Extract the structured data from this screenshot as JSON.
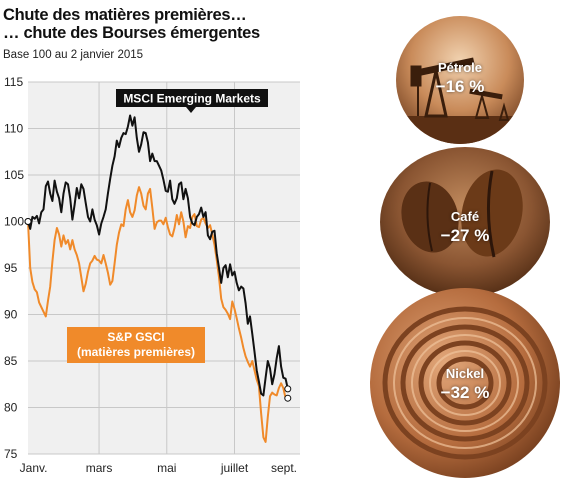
{
  "header": {
    "title_line1": "Chute des matières premières…",
    "title_line2": "… chute des Bourses émergentes",
    "subtitle": "Base 100 au 2 janvier 2015"
  },
  "chart_data": {
    "type": "line",
    "title": "Chute des matières premières… … chute des Bourses émergentes",
    "subtitle": "Base 100 au 2 janvier 2015",
    "ylim": [
      75,
      115
    ],
    "yticks": [
      75,
      80,
      85,
      90,
      95,
      100,
      105,
      110,
      115
    ],
    "xlim": [
      0,
      245
    ],
    "xticks": [
      {
        "label": "Janv.",
        "day": 5
      },
      {
        "label": "mars",
        "day": 64
      },
      {
        "label": "mai",
        "day": 125
      },
      {
        "label": "juillet",
        "day": 186
      },
      {
        "label": "sept.",
        "day": 248
      }
    ],
    "grid": true,
    "series": [
      {
        "name": "MSCI Emerging Markets",
        "color": "#111111",
        "points": [
          [
            0,
            100
          ],
          [
            2,
            99.2
          ],
          [
            4,
            100.5
          ],
          [
            6,
            100.3
          ],
          [
            8,
            100.6
          ],
          [
            10,
            99.8
          ],
          [
            12,
            101
          ],
          [
            14,
            101.3
          ],
          [
            16,
            103.8
          ],
          [
            18,
            104.3
          ],
          [
            20,
            103
          ],
          [
            22,
            102.2
          ],
          [
            24,
            104.4
          ],
          [
            26,
            103.2
          ],
          [
            28,
            102.5
          ],
          [
            30,
            101
          ],
          [
            32,
            103
          ],
          [
            34,
            104.2
          ],
          [
            36,
            104
          ],
          [
            38,
            102.5
          ],
          [
            40,
            100.2
          ],
          [
            42,
            101.8
          ],
          [
            44,
            103.6
          ],
          [
            46,
            102.5
          ],
          [
            48,
            104
          ],
          [
            50,
            103.5
          ],
          [
            52,
            102
          ],
          [
            54,
            100.5
          ],
          [
            56,
            100
          ],
          [
            58,
            101.3
          ],
          [
            60,
            100.2
          ],
          [
            62,
            99.6
          ],
          [
            64,
            98.6
          ],
          [
            66,
            99.8
          ],
          [
            68,
            100.5
          ],
          [
            70,
            101.3
          ],
          [
            72,
            103
          ],
          [
            74,
            104.6
          ],
          [
            76,
            106
          ],
          [
            78,
            107
          ],
          [
            80,
            108.7
          ],
          [
            82,
            108
          ],
          [
            84,
            109
          ],
          [
            86,
            109.5
          ],
          [
            88,
            109.4
          ],
          [
            90,
            110.2
          ],
          [
            92,
            111.4
          ],
          [
            94,
            110.3
          ],
          [
            96,
            111.2
          ],
          [
            98,
            109
          ],
          [
            100,
            107.5
          ],
          [
            102,
            108.3
          ],
          [
            104,
            109.6
          ],
          [
            106,
            109.5
          ],
          [
            108,
            108.5
          ],
          [
            110,
            106.5
          ],
          [
            112,
            107.3
          ],
          [
            114,
            106.5
          ],
          [
            116,
            106.5
          ],
          [
            118,
            106
          ],
          [
            120,
            105.5
          ],
          [
            122,
            104.5
          ],
          [
            124,
            103.3
          ],
          [
            126,
            103.2
          ],
          [
            128,
            104.4
          ],
          [
            130,
            102.4
          ],
          [
            132,
            101.9
          ],
          [
            134,
            102.5
          ],
          [
            136,
            104
          ],
          [
            138,
            104.2
          ],
          [
            140,
            102.4
          ],
          [
            142,
            103.5
          ],
          [
            144,
            102.5
          ],
          [
            146,
            100.5
          ],
          [
            148,
            99.8
          ],
          [
            150,
            99.6
          ],
          [
            152,
            100.5
          ],
          [
            154,
            100.8
          ],
          [
            156,
            101.5
          ],
          [
            158,
            100.5
          ],
          [
            160,
            101
          ],
          [
            162,
            98.5
          ],
          [
            164,
            98.1
          ],
          [
            166,
            98.9
          ],
          [
            168,
            99
          ],
          [
            170,
            96.6
          ],
          [
            172,
            95
          ],
          [
            174,
            93.4
          ],
          [
            176,
            95
          ],
          [
            178,
            95.3
          ],
          [
            180,
            94
          ],
          [
            182,
            95.4
          ],
          [
            184,
            94.2
          ],
          [
            186,
            94.6
          ],
          [
            188,
            93.4
          ],
          [
            190,
            92.6
          ],
          [
            192,
            93
          ],
          [
            194,
            92.8
          ],
          [
            196,
            91.2
          ],
          [
            198,
            89
          ],
          [
            200,
            89.8
          ],
          [
            202,
            87.9
          ],
          [
            204,
            86
          ],
          [
            206,
            84
          ],
          [
            208,
            82.8
          ],
          [
            210,
            81.5
          ],
          [
            212,
            81.3
          ],
          [
            214,
            83.2
          ],
          [
            216,
            85
          ],
          [
            218,
            84.2
          ],
          [
            220,
            82.5
          ],
          [
            222,
            83.6
          ],
          [
            224,
            85.3
          ],
          [
            226,
            86.6
          ],
          [
            228,
            84.4
          ],
          [
            230,
            83.2
          ],
          [
            232,
            83.1
          ],
          [
            234,
            82
          ]
        ]
      },
      {
        "name": "S&P GSCI",
        "name_line2": "(matières premières)",
        "color": "#f08a2a",
        "points": [
          [
            0,
            100
          ],
          [
            2,
            95
          ],
          [
            4,
            93.5
          ],
          [
            6,
            92.7
          ],
          [
            8,
            92.4
          ],
          [
            10,
            91.3
          ],
          [
            12,
            90.8
          ],
          [
            14,
            90.3
          ],
          [
            16,
            89.8
          ],
          [
            18,
            91.5
          ],
          [
            20,
            93
          ],
          [
            22,
            95.7
          ],
          [
            24,
            98
          ],
          [
            26,
            99.3
          ],
          [
            28,
            98.6
          ],
          [
            30,
            97.3
          ],
          [
            32,
            98.5
          ],
          [
            34,
            97.6
          ],
          [
            36,
            98
          ],
          [
            38,
            97
          ],
          [
            40,
            98
          ],
          [
            42,
            97
          ],
          [
            44,
            96.4
          ],
          [
            46,
            95.5
          ],
          [
            48,
            94
          ],
          [
            50,
            92.5
          ],
          [
            52,
            93.3
          ],
          [
            54,
            94.6
          ],
          [
            56,
            95.5
          ],
          [
            58,
            95.8
          ],
          [
            60,
            96.3
          ],
          [
            62,
            95.9
          ],
          [
            64,
            95.8
          ],
          [
            66,
            95.5
          ],
          [
            68,
            96.4
          ],
          [
            70,
            95.5
          ],
          [
            72,
            94.5
          ],
          [
            74,
            93.2
          ],
          [
            76,
            93.6
          ],
          [
            78,
            95.5
          ],
          [
            80,
            97.5
          ],
          [
            82,
            98.8
          ],
          [
            84,
            99.7
          ],
          [
            86,
            99.5
          ],
          [
            88,
            101.3
          ],
          [
            90,
            102.3
          ],
          [
            92,
            101
          ],
          [
            94,
            100.5
          ],
          [
            96,
            101.2
          ],
          [
            98,
            102.8
          ],
          [
            100,
            103.7
          ],
          [
            102,
            103
          ],
          [
            104,
            101.7
          ],
          [
            106,
            101.3
          ],
          [
            108,
            103
          ],
          [
            110,
            103.5
          ],
          [
            112,
            101.5
          ],
          [
            114,
            99.2
          ],
          [
            116,
            99.9
          ],
          [
            118,
            100.1
          ],
          [
            120,
            100.1
          ],
          [
            122,
            99.7
          ],
          [
            124,
            100.4
          ],
          [
            126,
            99.4
          ],
          [
            128,
            98.6
          ],
          [
            130,
            98.4
          ],
          [
            132,
            99.3
          ],
          [
            134,
            100.7
          ],
          [
            136,
            99.7
          ],
          [
            138,
            101
          ],
          [
            140,
            100
          ],
          [
            142,
            98.3
          ],
          [
            144,
            99.5
          ],
          [
            146,
            99.3
          ],
          [
            148,
            100.5
          ],
          [
            150,
            100.8
          ],
          [
            152,
            99.5
          ],
          [
            154,
            99.4
          ],
          [
            156,
            100.2
          ],
          [
            158,
            100.4
          ],
          [
            160,
            99.8
          ],
          [
            162,
            99.3
          ],
          [
            164,
            99.6
          ],
          [
            166,
            98.6
          ],
          [
            168,
            97.5
          ],
          [
            170,
            95.9
          ],
          [
            172,
            94
          ],
          [
            174,
            91.7
          ],
          [
            176,
            90.8
          ],
          [
            178,
            90.5
          ],
          [
            180,
            90.1
          ],
          [
            182,
            89.5
          ],
          [
            184,
            91.4
          ],
          [
            186,
            90.6
          ],
          [
            188,
            89.6
          ],
          [
            190,
            88.5
          ],
          [
            192,
            87.5
          ],
          [
            194,
            86.4
          ],
          [
            196,
            85.5
          ],
          [
            198,
            84.9
          ],
          [
            200,
            84.4
          ],
          [
            202,
            85
          ],
          [
            204,
            84
          ],
          [
            206,
            83
          ],
          [
            208,
            82.3
          ],
          [
            210,
            79.4
          ],
          [
            212,
            76.8
          ],
          [
            214,
            76.3
          ],
          [
            216,
            79
          ],
          [
            218,
            81.2
          ],
          [
            220,
            81.6
          ],
          [
            222,
            81.4
          ],
          [
            224,
            81.3
          ],
          [
            226,
            82.1
          ],
          [
            228,
            82.6
          ],
          [
            230,
            82.1
          ],
          [
            232,
            81
          ],
          [
            234,
            81
          ]
        ]
      }
    ]
  },
  "legend": {
    "msci_label": "MSCI Emerging Markets",
    "gsci_line1": "S&P GSCI",
    "gsci_line2": "(matières premières)"
  },
  "commodities": [
    {
      "name": "Pétrole",
      "change": "−16 %",
      "icon": "oil-pump-photo"
    },
    {
      "name": "Café",
      "change": "−27 %",
      "icon": "coffee-bean-photo"
    },
    {
      "name": "Nickel",
      "change": "−32 %",
      "icon": "nickel-coil-photo"
    }
  ],
  "colors": {
    "msci": "#111111",
    "gsci": "#f08a2a",
    "plot_bg": "#f0f0f0",
    "copper": "#a5693f"
  }
}
